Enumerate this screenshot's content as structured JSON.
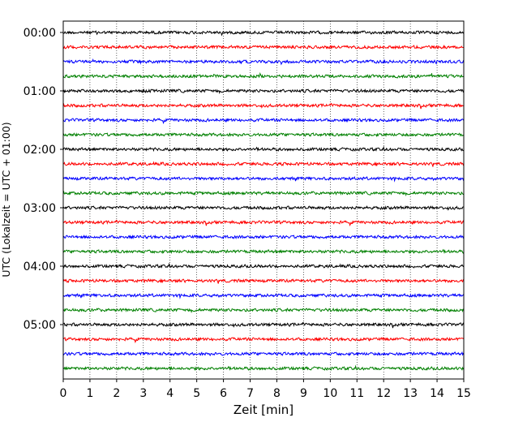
{
  "chart_data": {
    "type": "line",
    "title": "",
    "xlabel": "Zeit  [min]",
    "ylabel": "UTC (Lokalzeit = UTC + 01:00)",
    "xlim": [
      0,
      15
    ],
    "x_ticks": [
      0,
      1,
      2,
      3,
      4,
      5,
      6,
      7,
      8,
      9,
      10,
      11,
      12,
      13,
      14,
      15
    ],
    "y_tick_labels": [
      "00:00",
      "01:00",
      "02:00",
      "03:00",
      "04:00",
      "05:00"
    ],
    "trace_interval_minutes": 15,
    "trace_count": 24,
    "trace_color_cycle": [
      "#000000",
      "#ff0000",
      "#0000ff",
      "#008000"
    ],
    "vertical_grid": true,
    "grid_style": "dotted"
  }
}
